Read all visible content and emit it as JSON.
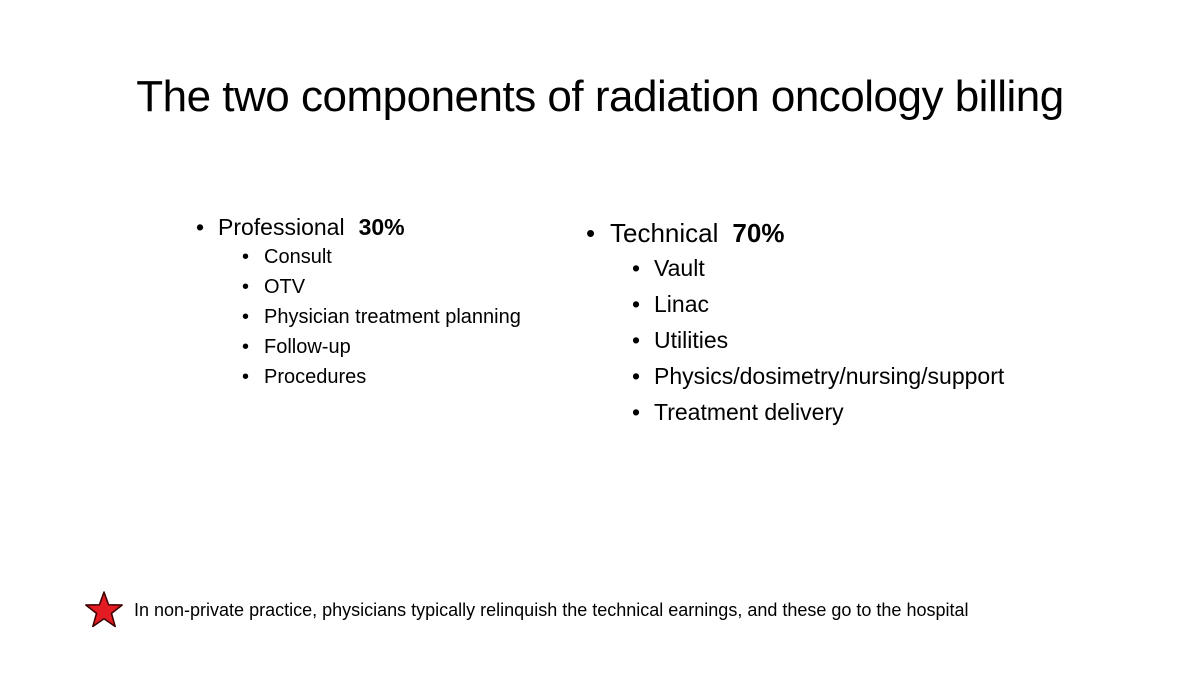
{
  "slide": {
    "title": "The two components of radiation oncology billing"
  },
  "columns": [
    {
      "label": "Professional",
      "percent": "30%",
      "items": [
        "Consult",
        "OTV",
        "Physician treatment planning",
        "Follow-up",
        "Procedures"
      ]
    },
    {
      "label": "Technical",
      "percent": "70%",
      "items": [
        "Vault",
        "Linac",
        "Utilities",
        "Physics/dosimetry/nursing/support",
        "Treatment delivery"
      ]
    }
  ],
  "footnote": {
    "icon": "red-star-icon",
    "text": "In non-private practice, physicians typically relinquish the technical earnings, and these go to the hospital"
  },
  "colors": {
    "star_fill": "#e31b23",
    "star_stroke": "#3a0000",
    "text": "#000000",
    "background": "#ffffff"
  }
}
